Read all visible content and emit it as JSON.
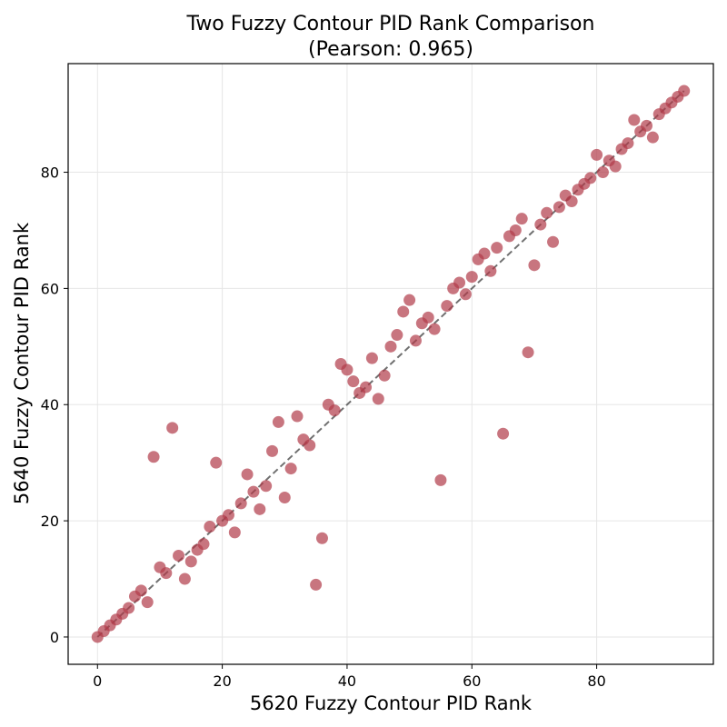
{
  "chart_data": {
    "type": "scatter",
    "title_line1": "Two Fuzzy Contour PID Rank Comparison",
    "title_line2": "(Pearson: 0.965)",
    "xlabel": "5620 Fuzzy Contour PID Rank",
    "ylabel": "5640 Fuzzy Contour PID Rank",
    "xlim": [
      -4.7,
      98.7
    ],
    "ylim": [
      -4.7,
      98.7
    ],
    "xticks": [
      0,
      20,
      40,
      60,
      80
    ],
    "yticks": [
      0,
      20,
      40,
      60,
      80
    ],
    "grid": true,
    "point_color": "#b03a48",
    "reference_line": {
      "from": [
        0,
        0
      ],
      "to": [
        94,
        94
      ],
      "color": "#333333",
      "style": "dashed"
    },
    "x": [
      0,
      1,
      2,
      3,
      4,
      5,
      6,
      7,
      8,
      9,
      10,
      11,
      12,
      13,
      14,
      15,
      16,
      17,
      18,
      19,
      20,
      21,
      22,
      23,
      24,
      25,
      26,
      27,
      28,
      29,
      30,
      31,
      32,
      33,
      34,
      35,
      36,
      37,
      38,
      39,
      40,
      41,
      42,
      43,
      44,
      45,
      46,
      47,
      48,
      49,
      50,
      51,
      52,
      53,
      54,
      55,
      56,
      57,
      58,
      59,
      60,
      61,
      62,
      63,
      64,
      65,
      66,
      67,
      68,
      69,
      70,
      71,
      72,
      73,
      74,
      75,
      76,
      77,
      78,
      79,
      80,
      81,
      82,
      83,
      84,
      85,
      86,
      87,
      88,
      89,
      90,
      91,
      92,
      93,
      94
    ],
    "y": [
      0,
      1,
      2,
      3,
      4,
      5,
      7,
      8,
      6,
      31,
      12,
      11,
      36,
      14,
      10,
      13,
      15,
      16,
      19,
      30,
      20,
      21,
      18,
      23,
      28,
      25,
      22,
      26,
      32,
      37,
      24,
      29,
      38,
      34,
      33,
      9,
      17,
      40,
      39,
      47,
      46,
      44,
      42,
      43,
      48,
      41,
      45,
      50,
      52,
      56,
      58,
      51,
      54,
      55,
      53,
      27,
      57,
      60,
      61,
      59,
      62,
      65,
      66,
      63,
      67,
      35,
      69,
      70,
      72,
      49,
      64,
      71,
      73,
      68,
      74,
      76,
      75,
      77,
      78,
      79,
      83,
      80,
      82,
      81,
      84,
      85,
      89,
      87,
      88,
      86,
      90,
      91,
      92,
      93,
      94
    ]
  }
}
